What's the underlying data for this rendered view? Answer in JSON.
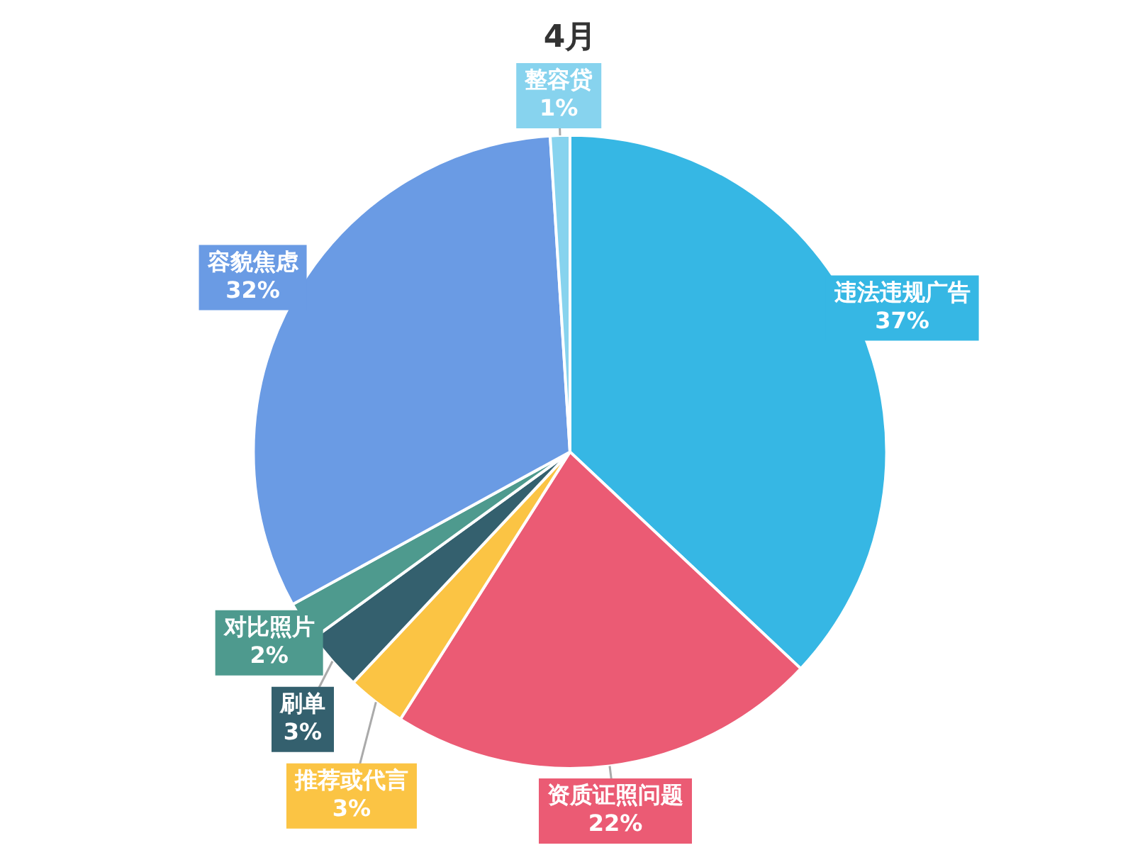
{
  "chart_data": {
    "type": "pie",
    "title": "4月",
    "categories": [
      "违法违规广告",
      "资质证照问题",
      "推荐或代言",
      "刷单",
      "对比照片",
      "容貌焦虑",
      "整容贷"
    ],
    "values": [
      37,
      22,
      3,
      3,
      2,
      32,
      1
    ],
    "value_labels": [
      "37%",
      "22%",
      "3%",
      "3%",
      "2%",
      "32%",
      "1%"
    ],
    "colors": [
      "#36b7e4",
      "#eb5b74",
      "#fbc444",
      "#34606e",
      "#4e9a8e",
      "#6a9be4",
      "#87d3ee"
    ],
    "legend": false
  }
}
